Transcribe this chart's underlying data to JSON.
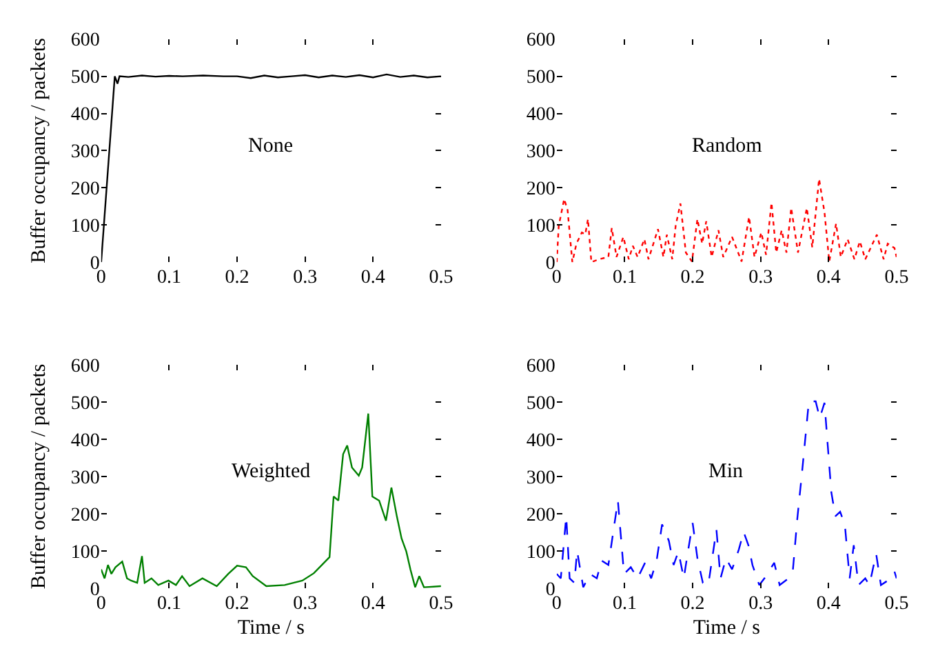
{
  "chart_data": [
    {
      "type": "line",
      "title": "None",
      "ylabel": "Buffer occupancy / packets",
      "xlim": [
        0,
        0.5
      ],
      "ylim": [
        0,
        600
      ],
      "xticks": [
        0,
        0.1,
        0.2,
        0.3,
        0.4,
        0.5
      ],
      "yticks": [
        0,
        100,
        200,
        300,
        400,
        500,
        600
      ],
      "line_style": "solid",
      "marker": "none",
      "series": [
        {
          "color": "#000000",
          "x": [
            0,
            0.02,
            0.024,
            0.027,
            0.04,
            0.06,
            0.08,
            0.1,
            0.12,
            0.15,
            0.18,
            0.2,
            0.22,
            0.24,
            0.26,
            0.28,
            0.3,
            0.32,
            0.34,
            0.36,
            0.38,
            0.4,
            0.42,
            0.44,
            0.46,
            0.48,
            0.5
          ],
          "values": [
            0,
            500,
            480,
            500,
            498,
            502,
            499,
            501,
            500,
            502,
            500,
            500,
            495,
            502,
            497,
            500,
            503,
            497,
            502,
            498,
            503,
            497,
            505,
            498,
            502,
            497,
            500
          ]
        }
      ]
    },
    {
      "type": "line",
      "title": "Random",
      "xlim": [
        0,
        0.5
      ],
      "ylim": [
        0,
        600
      ],
      "xticks": [
        0,
        0.1,
        0.2,
        0.3,
        0.4,
        0.5
      ],
      "yticks": [
        0,
        100,
        200,
        300,
        400,
        500,
        600
      ],
      "line_style": "dotted",
      "marker": "none",
      "series": [
        {
          "color": "#ff0000",
          "x": [
            0,
            0.003,
            0.011,
            0.016,
            0.023,
            0.029,
            0.037,
            0.042,
            0.046,
            0.051,
            0.062,
            0.076,
            0.081,
            0.088,
            0.098,
            0.106,
            0.112,
            0.119,
            0.129,
            0.135,
            0.149,
            0.157,
            0.162,
            0.17,
            0.175,
            0.182,
            0.19,
            0.199,
            0.207,
            0.214,
            0.22,
            0.228,
            0.238,
            0.245,
            0.258,
            0.272,
            0.283,
            0.291,
            0.301,
            0.308,
            0.316,
            0.323,
            0.331,
            0.338,
            0.345,
            0.355,
            0.368,
            0.376,
            0.386,
            0.394,
            0.401,
            0.411,
            0.418,
            0.428,
            0.438,
            0.446,
            0.454,
            0.471,
            0.481,
            0.487,
            0.497,
            0.5
          ],
          "values": [
            0,
            98,
            170,
            140,
            0,
            50,
            80,
            75,
            116,
            0,
            8,
            14,
            92,
            14,
            68,
            8,
            44,
            14,
            62,
            8,
            89,
            14,
            74,
            8,
            98,
            158,
            26,
            2,
            116,
            50,
            110,
            14,
            86,
            14,
            68,
            2,
            122,
            14,
            80,
            20,
            160,
            26,
            86,
            26,
            146,
            26,
            146,
            40,
            224,
            134,
            2,
            104,
            14,
            62,
            8,
            56,
            8,
            74,
            8,
            50,
            38,
            14
          ]
        }
      ]
    },
    {
      "type": "line",
      "title": "Weighted",
      "xlabel": "Time / s",
      "ylabel": "Buffer occupancy / packets",
      "xlim": [
        0,
        0.5
      ],
      "ylim": [
        0,
        600
      ],
      "xticks": [
        0,
        0.1,
        0.2,
        0.3,
        0.4,
        0.5
      ],
      "yticks": [
        0,
        100,
        200,
        300,
        400,
        500,
        600
      ],
      "line_style": "solid",
      "marker": "none",
      "series": [
        {
          "color": "#008000",
          "x": [
            0,
            0.005,
            0.01,
            0.015,
            0.021,
            0.031,
            0.038,
            0.044,
            0.053,
            0.06,
            0.064,
            0.074,
            0.084,
            0.099,
            0.11,
            0.119,
            0.13,
            0.149,
            0.17,
            0.187,
            0.2,
            0.213,
            0.223,
            0.243,
            0.27,
            0.296,
            0.313,
            0.336,
            0.342,
            0.349,
            0.356,
            0.362,
            0.369,
            0.379,
            0.384,
            0.393,
            0.399,
            0.409,
            0.419,
            0.427,
            0.435,
            0.442,
            0.449,
            0.455,
            0.462,
            0.468,
            0.475,
            0.5
          ],
          "values": [
            50,
            26,
            62,
            38,
            56,
            71,
            26,
            20,
            14,
            86,
            14,
            26,
            8,
            20,
            8,
            32,
            5,
            26,
            5,
            38,
            60,
            56,
            32,
            5,
            8,
            20,
            40,
            83,
            246,
            235,
            360,
            383,
            324,
            302,
            324,
            469,
            246,
            235,
            181,
            270,
            193,
            133,
            98,
            50,
            2,
            32,
            2,
            5
          ]
        }
      ]
    },
    {
      "type": "line",
      "title": "Min",
      "xlabel": "Time / s",
      "xlim": [
        0,
        0.5
      ],
      "ylim": [
        0,
        600
      ],
      "xticks": [
        0,
        0.1,
        0.2,
        0.3,
        0.4,
        0.5
      ],
      "yticks": [
        0,
        100,
        200,
        300,
        400,
        500,
        600
      ],
      "line_style": "dashed",
      "marker": "none",
      "series": [
        {
          "color": "#0000ff",
          "x": [
            0,
            0.006,
            0.014,
            0.019,
            0.026,
            0.03,
            0.039,
            0.049,
            0.059,
            0.066,
            0.076,
            0.09,
            0.099,
            0.109,
            0.119,
            0.13,
            0.139,
            0.147,
            0.155,
            0.165,
            0.172,
            0.179,
            0.187,
            0.192,
            0.2,
            0.207,
            0.215,
            0.223,
            0.235,
            0.241,
            0.249,
            0.258,
            0.268,
            0.275,
            0.282,
            0.288,
            0.298,
            0.308,
            0.32,
            0.328,
            0.341,
            0.347,
            0.354,
            0.361,
            0.371,
            0.381,
            0.387,
            0.394,
            0.404,
            0.41,
            0.417,
            0.424,
            0.431,
            0.437,
            0.444,
            0.454,
            0.46,
            0.47,
            0.477,
            0.487,
            0.497,
            0.5
          ],
          "values": [
            38,
            26,
            193,
            26,
            14,
            100,
            2,
            38,
            26,
            74,
            62,
            235,
            38,
            56,
            26,
            68,
            26,
            74,
            171,
            127,
            62,
            98,
            26,
            86,
            175,
            80,
            14,
            8,
            157,
            26,
            80,
            50,
            104,
            151,
            115,
            62,
            8,
            32,
            68,
            8,
            26,
            38,
            187,
            312,
            502,
            502,
            457,
            498,
            258,
            193,
            205,
            169,
            26,
            115,
            8,
            26,
            8,
            92,
            8,
            20,
            44,
            26
          ]
        }
      ]
    }
  ]
}
